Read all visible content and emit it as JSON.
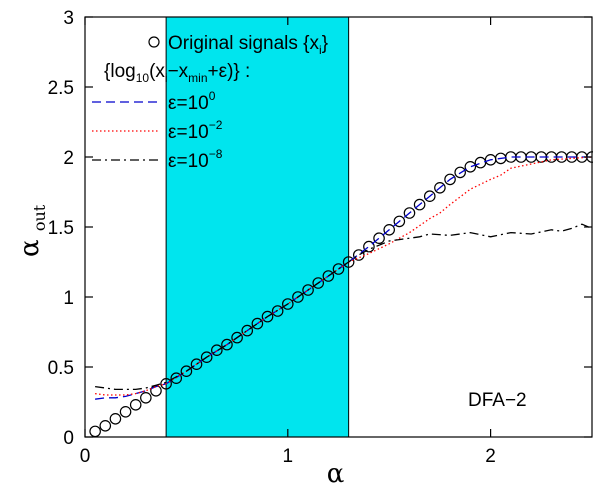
{
  "chart_data": {
    "type": "line",
    "xlabel": "α",
    "ylabel": {
      "base": "α",
      "sub": "out"
    },
    "xlim": [
      0,
      2.5
    ],
    "ylim": [
      0,
      3
    ],
    "xticks": [
      0,
      1,
      2
    ],
    "yticks": [
      0,
      0.5,
      1,
      1.5,
      2,
      2.5,
      3
    ],
    "xtick_labels": [
      "0",
      "1",
      "2"
    ],
    "ytick_labels": [
      "0",
      "0.5",
      "1",
      "1.5",
      "2",
      "2.5",
      "3"
    ],
    "grid": false,
    "shaded_region": {
      "x_range": [
        0.4,
        1.3
      ],
      "color": "#00e5ee"
    },
    "annotation": "DFA−2",
    "legend": {
      "placement": "top-left",
      "heading": {
        "pre": "{log",
        "sub1": "10",
        "mid1": "(x",
        "sub2": "i",
        "mid2": "−x",
        "sub3": "min",
        "post": "+ε)} :"
      },
      "entries": [
        {
          "pre": "Original signals {x",
          "sub": "i",
          "post": "}"
        },
        {
          "pre": "ε=10",
          "sup": "0"
        },
        {
          "pre": "ε=10",
          "sup": "−2"
        },
        {
          "pre": "ε=10",
          "sup": "−8"
        }
      ]
    },
    "series": [
      {
        "style": "open-circle-markers",
        "color": "#000000",
        "x": [
          0.05,
          0.1,
          0.15,
          0.2,
          0.25,
          0.3,
          0.35,
          0.4,
          0.45,
          0.5,
          0.55,
          0.6,
          0.65,
          0.7,
          0.75,
          0.8,
          0.85,
          0.9,
          0.95,
          1.0,
          1.05,
          1.1,
          1.15,
          1.2,
          1.25,
          1.3,
          1.35,
          1.4,
          1.45,
          1.5,
          1.55,
          1.6,
          1.65,
          1.7,
          1.75,
          1.8,
          1.85,
          1.9,
          1.95,
          2.0,
          2.05,
          2.1,
          2.15,
          2.2,
          2.25,
          2.3,
          2.35,
          2.4,
          2.45,
          2.5
        ],
        "y": [
          0.04,
          0.08,
          0.13,
          0.18,
          0.23,
          0.28,
          0.33,
          0.38,
          0.42,
          0.47,
          0.52,
          0.57,
          0.62,
          0.66,
          0.71,
          0.76,
          0.81,
          0.86,
          0.9,
          0.95,
          1.0,
          1.05,
          1.1,
          1.15,
          1.2,
          1.25,
          1.3,
          1.36,
          1.42,
          1.48,
          1.54,
          1.6,
          1.66,
          1.72,
          1.78,
          1.84,
          1.89,
          1.93,
          1.96,
          1.98,
          1.99,
          2.0,
          2.0,
          2.0,
          2.0,
          2.0,
          2.0,
          2.0,
          2.0,
          2.0
        ]
      },
      {
        "style": "dashed",
        "color": "#0000cc",
        "x": [
          0.05,
          0.1,
          0.15,
          0.2,
          0.25,
          0.3,
          0.35,
          0.4,
          0.5,
          0.6,
          0.7,
          0.8,
          0.9,
          1.0,
          1.1,
          1.2,
          1.3,
          1.4,
          1.5,
          1.6,
          1.7,
          1.8,
          1.9,
          2.0,
          2.1,
          2.2,
          2.3,
          2.4,
          2.5
        ],
        "y": [
          0.27,
          0.28,
          0.28,
          0.29,
          0.31,
          0.33,
          0.36,
          0.38,
          0.47,
          0.57,
          0.66,
          0.76,
          0.86,
          0.95,
          1.05,
          1.15,
          1.25,
          1.36,
          1.48,
          1.6,
          1.72,
          1.84,
          1.93,
          1.98,
          2.0,
          2.0,
          2.0,
          2.0,
          2.0
        ]
      },
      {
        "style": "dotted",
        "color": "#ff0000",
        "x": [
          0.05,
          0.1,
          0.15,
          0.2,
          0.25,
          0.3,
          0.35,
          0.4,
          0.5,
          0.6,
          0.7,
          0.8,
          0.9,
          1.0,
          1.1,
          1.2,
          1.3,
          1.35,
          1.4,
          1.5,
          1.6,
          1.7,
          1.75,
          1.8,
          1.9,
          2.0,
          2.05,
          2.1,
          2.2,
          2.3,
          2.4,
          2.5
        ],
        "y": [
          0.31,
          0.3,
          0.3,
          0.3,
          0.31,
          0.33,
          0.36,
          0.38,
          0.47,
          0.57,
          0.66,
          0.76,
          0.86,
          0.95,
          1.05,
          1.15,
          1.25,
          1.28,
          1.31,
          1.38,
          1.46,
          1.56,
          1.6,
          1.66,
          1.77,
          1.84,
          1.87,
          1.92,
          1.95,
          1.98,
          1.99,
          2.0
        ]
      },
      {
        "style": "dash-dot",
        "color": "#000000",
        "x": [
          0.05,
          0.1,
          0.15,
          0.2,
          0.25,
          0.3,
          0.35,
          0.4,
          0.5,
          0.6,
          0.7,
          0.8,
          0.9,
          1.0,
          1.1,
          1.2,
          1.3,
          1.35,
          1.4,
          1.45,
          1.5,
          1.55,
          1.6,
          1.65,
          1.7,
          1.8,
          1.9,
          2.0,
          2.1,
          2.2,
          2.3,
          2.35,
          2.4,
          2.45,
          2.5
        ],
        "y": [
          0.36,
          0.35,
          0.34,
          0.34,
          0.34,
          0.35,
          0.37,
          0.39,
          0.47,
          0.57,
          0.66,
          0.76,
          0.86,
          0.95,
          1.05,
          1.15,
          1.25,
          1.3,
          1.34,
          1.37,
          1.4,
          1.41,
          1.42,
          1.43,
          1.45,
          1.44,
          1.46,
          1.43,
          1.46,
          1.45,
          1.48,
          1.47,
          1.49,
          1.52,
          1.49
        ]
      }
    ]
  }
}
